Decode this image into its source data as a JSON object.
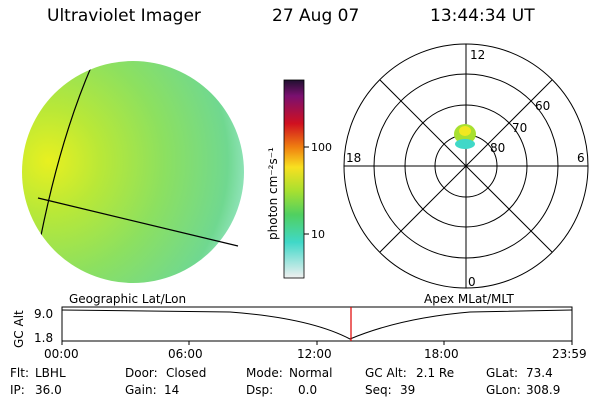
{
  "header": {
    "instrument": "Ultraviolet Imager",
    "date": "27 Aug 07",
    "time": "13:44:34 UT"
  },
  "colorbar": {
    "unit_label": "photon cm⁻²s⁻¹",
    "ticks": [
      "100",
      "10"
    ]
  },
  "polar": {
    "mlt_labels": {
      "top": "12",
      "left": "18",
      "right": "6",
      "bottom": "0"
    },
    "lat_labels": [
      "60",
      "70",
      "80"
    ]
  },
  "orbit": {
    "left_caption": "Geographic Lat/Lon",
    "right_caption": "Apex MLat/MLT",
    "axis_label": "GC Alt",
    "y_ticks": [
      "9.0",
      "1.8"
    ],
    "time_ticks": [
      "00:00",
      "06:00",
      "12:00",
      "18:00",
      "23:59"
    ],
    "marker_color": "#e00000"
  },
  "footer": {
    "row1": [
      {
        "label": "Flt:",
        "value": "LBHL"
      },
      {
        "label": "Door:",
        "value": "Closed"
      },
      {
        "label": "Mode:",
        "value": "Normal"
      },
      {
        "label": "GC Alt:",
        "value": "2.1 Re"
      },
      {
        "label": "GLat:",
        "value": "73.4"
      }
    ],
    "row2": [
      {
        "label": "IP:",
        "value": "36.0"
      },
      {
        "label": "Gain:",
        "value": "14"
      },
      {
        "label": "Dsp:",
        "value": "0.0"
      },
      {
        "label": "Seq:",
        "value": "39"
      },
      {
        "label": "GLon:",
        "value": "308.9"
      }
    ]
  }
}
